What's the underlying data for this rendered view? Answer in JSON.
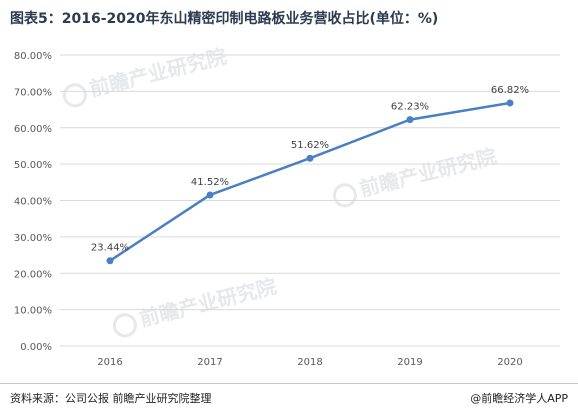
{
  "title": "图表5：2016-2020年东山精密印制电路板业务营收占比(单位：%)",
  "source": "资料来源：公司公报 前瞻产业研究院整理",
  "brand": "@前瞻经济学人APP",
  "watermark": "前瞻产业研究院",
  "colors": {
    "line": "#4a7fc1",
    "grid": "#d9d9d9",
    "axis_text": "#595959",
    "label_text": "#404040"
  },
  "chart_data": {
    "type": "line",
    "categories": [
      "2016",
      "2017",
      "2018",
      "2019",
      "2020"
    ],
    "series": [
      {
        "values": [
          23.44,
          41.52,
          51.62,
          62.23,
          66.82
        ],
        "labels": [
          "23.44%",
          "41.52%",
          "51.62%",
          "62.23%",
          "66.82%"
        ]
      }
    ],
    "ylim": [
      0,
      80
    ],
    "yticks": [
      "0.00%",
      "10.00%",
      "20.00%",
      "30.00%",
      "40.00%",
      "50.00%",
      "60.00%",
      "70.00%",
      "80.00%"
    ],
    "grid": true,
    "legend": "none"
  }
}
